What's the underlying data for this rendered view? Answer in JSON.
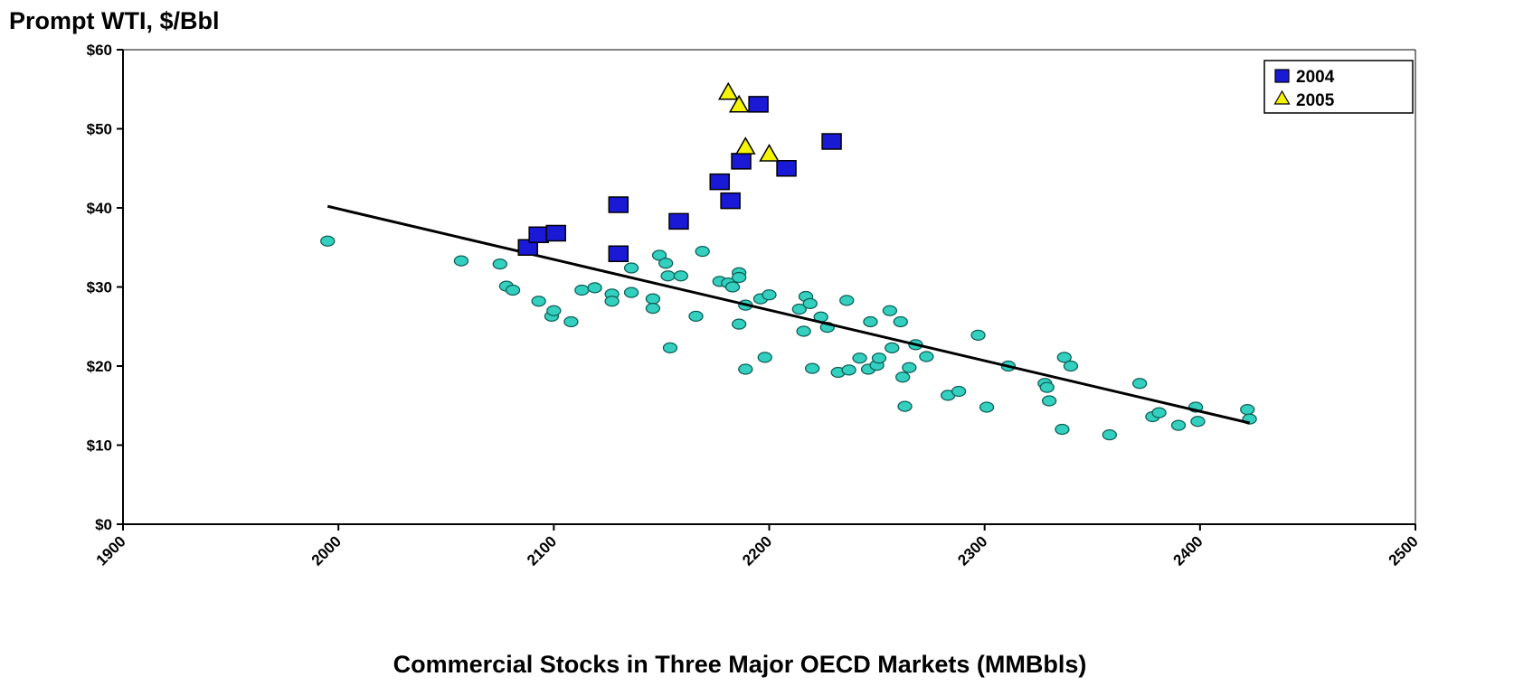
{
  "chart_data": {
    "type": "scatter",
    "title": "",
    "ylabel": "Prompt WTI, $/Bbl",
    "xlabel": "Commercial Stocks in Three Major OECD  Markets (MMBbls)",
    "xlim": [
      1900,
      2500
    ],
    "ylim": [
      0,
      60
    ],
    "x_ticks": [
      1900,
      2000,
      2100,
      2200,
      2300,
      2400,
      2500
    ],
    "x_tick_labels": [
      "1900",
      "2000",
      "2100",
      "2200",
      "2300",
      "2400",
      "2500"
    ],
    "y_ticks": [
      0,
      10,
      20,
      30,
      40,
      50,
      60
    ],
    "y_tick_labels": [
      "$0",
      "$10",
      "$20",
      "$30",
      "$40",
      "$50",
      "$60"
    ],
    "grid": false,
    "legend_position": "top-right",
    "colors": {
      "2004": "#1a1ad6",
      "2005": "#f4f400",
      "history": "#33d0c0",
      "trend": "#000000"
    },
    "series": [
      {
        "name": "",
        "marker": "circle",
        "points": [
          [
            1995,
            35.8
          ],
          [
            2057,
            33.3
          ],
          [
            2075,
            32.9
          ],
          [
            2078,
            30.1
          ],
          [
            2081,
            29.6
          ],
          [
            2093,
            28.2
          ],
          [
            2099,
            26.3
          ],
          [
            2100,
            27.0
          ],
          [
            2108,
            25.6
          ],
          [
            2113,
            29.6
          ],
          [
            2119,
            29.9
          ],
          [
            2127,
            29.1
          ],
          [
            2127,
            28.2
          ],
          [
            2136,
            32.4
          ],
          [
            2136,
            29.3
          ],
          [
            2146,
            28.5
          ],
          [
            2146,
            27.3
          ],
          [
            2149,
            34.0
          ],
          [
            2152,
            33.0
          ],
          [
            2153,
            31.4
          ],
          [
            2154,
            22.3
          ],
          [
            2159,
            31.4
          ],
          [
            2166,
            26.3
          ],
          [
            2169,
            34.5
          ],
          [
            2177,
            30.7
          ],
          [
            2181,
            30.5
          ],
          [
            2183,
            30.0
          ],
          [
            2186,
            31.8
          ],
          [
            2186,
            31.2
          ],
          [
            2186,
            25.3
          ],
          [
            2189,
            27.7
          ],
          [
            2189,
            19.6
          ],
          [
            2196,
            28.5
          ],
          [
            2198,
            21.1
          ],
          [
            2200,
            29.0
          ],
          [
            2214,
            27.2
          ],
          [
            2216,
            24.4
          ],
          [
            2217,
            28.8
          ],
          [
            2219,
            27.9
          ],
          [
            2220,
            19.7
          ],
          [
            2224,
            26.2
          ],
          [
            2227,
            24.9
          ],
          [
            2232,
            19.2
          ],
          [
            2236,
            28.3
          ],
          [
            2237,
            19.5
          ],
          [
            2242,
            21.0
          ],
          [
            2246,
            19.6
          ],
          [
            2247,
            25.6
          ],
          [
            2250,
            20.1
          ],
          [
            2251,
            21.0
          ],
          [
            2256,
            27.0
          ],
          [
            2257,
            22.3
          ],
          [
            2261,
            25.6
          ],
          [
            2262,
            18.6
          ],
          [
            2263,
            14.9
          ],
          [
            2265,
            19.8
          ],
          [
            2268,
            22.7
          ],
          [
            2273,
            21.2
          ],
          [
            2283,
            16.3
          ],
          [
            2288,
            16.8
          ],
          [
            2297,
            23.9
          ],
          [
            2301,
            14.8
          ],
          [
            2311,
            20.0
          ],
          [
            2328,
            17.8
          ],
          [
            2329,
            17.3
          ],
          [
            2330,
            15.6
          ],
          [
            2336,
            12.0
          ],
          [
            2337,
            21.1
          ],
          [
            2340,
            20.0
          ],
          [
            2358,
            11.3
          ],
          [
            2372,
            17.8
          ],
          [
            2378,
            13.6
          ],
          [
            2381,
            14.1
          ],
          [
            2390,
            12.5
          ],
          [
            2398,
            14.8
          ],
          [
            2399,
            13.0
          ],
          [
            2422,
            14.5
          ],
          [
            2423,
            13.3
          ]
        ]
      },
      {
        "name": "2004",
        "marker": "square",
        "points": [
          [
            2088,
            35.0
          ],
          [
            2093,
            36.6
          ],
          [
            2101,
            36.8
          ],
          [
            2130,
            40.4
          ],
          [
            2130,
            34.2
          ],
          [
            2158,
            38.3
          ],
          [
            2177,
            43.3
          ],
          [
            2182,
            40.9
          ],
          [
            2187,
            45.9
          ],
          [
            2195,
            53.1
          ],
          [
            2208,
            45.0
          ],
          [
            2229,
            48.4
          ]
        ]
      },
      {
        "name": "2005",
        "marker": "triangle",
        "points": [
          [
            2181,
            54.6
          ],
          [
            2186,
            53.0
          ],
          [
            2189,
            47.7
          ],
          [
            2200,
            46.8
          ]
        ]
      }
    ],
    "trendline": {
      "x": [
        1995,
        2423
      ],
      "y": [
        40.2,
        12.8
      ]
    }
  }
}
